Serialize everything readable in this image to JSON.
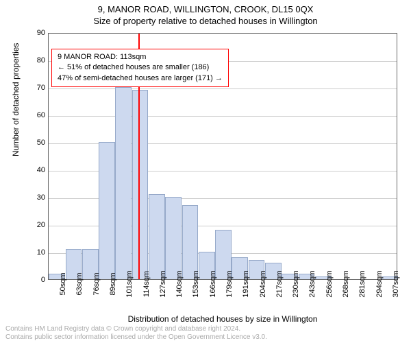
{
  "title_line1": "9, MANOR ROAD, WILLINGTON, CROOK, DL15 0QX",
  "title_line2": "Size of property relative to detached houses in Willington",
  "ylabel": "Number of detached properties",
  "xlabel": "Distribution of detached houses by size in Willington",
  "footer_line1": "Contains HM Land Registry data © Crown copyright and database right 2024.",
  "footer_line2": "Contains public sector information licensed under the Open Government Licence v3.0.",
  "chart": {
    "type": "histogram",
    "ylim": [
      0,
      90
    ],
    "ytick_step": 10,
    "grid_color": "#cccccc",
    "axis_color": "#666666",
    "bar_color": "#cdd9ef",
    "bar_border": "#96a9c9",
    "reference_x_value": 113,
    "reference_color": "#ff0000",
    "x_start": 50,
    "x_step": 12.86,
    "x_labels": [
      "50sqm",
      "63sqm",
      "76sqm",
      "89sqm",
      "101sqm",
      "114sqm",
      "127sqm",
      "140sqm",
      "153sqm",
      "166sqm",
      "179sqm",
      "191sqm",
      "204sqm",
      "217sqm",
      "230sqm",
      "243sqm",
      "256sqm",
      "268sqm",
      "281sqm",
      "294sqm",
      "307sqm"
    ],
    "values": [
      2,
      11,
      11,
      50,
      70,
      69,
      31,
      30,
      27,
      10,
      18,
      8,
      7,
      6,
      2,
      2,
      1,
      0,
      0,
      0,
      1
    ],
    "annotation": {
      "border_color": "#ff0000",
      "line1": "9 MANOR ROAD: 113sqm",
      "line2": "← 51% of detached houses are smaller (186)",
      "line3": "47% of semi-detached houses are larger (171) →"
    }
  }
}
